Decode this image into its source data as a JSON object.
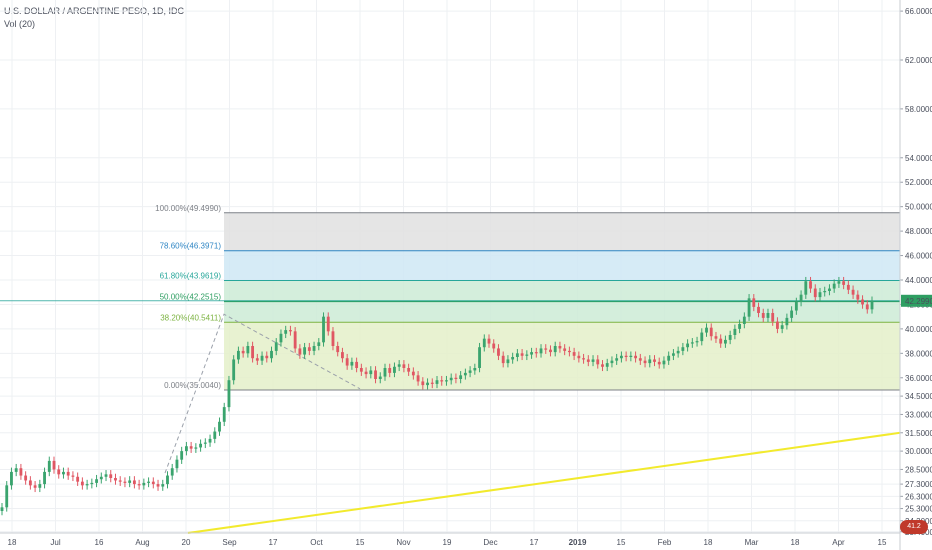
{
  "legend": {
    "symbol": "U.S. DOLLAR / ARGENTINE PESO, 1D, IDC",
    "volume": "Vol (20)"
  },
  "colors": {
    "up": "#3aa46e",
    "down": "#e05763",
    "trendline": "#f2ea2d",
    "price_tag": "#2e9e62",
    "grid": "#eef0f3"
  },
  "price_tag": "42.2990",
  "badge_text": "41.2",
  "chart_data": {
    "type": "candlestick",
    "ylim": [
      23.3,
      66.5
    ],
    "y_ticks": [
      "66.0000",
      "62.0000",
      "58.0000",
      "54.0000",
      "52.0000",
      "50.0000",
      "48.0000",
      "46.0000",
      "44.0000",
      "42.0000",
      "40.0000",
      "38.0000",
      "36.0000",
      "34.5000",
      "33.0000",
      "31.5000",
      "30.0000",
      "28.5000",
      "27.3000",
      "26.3000",
      "25.3000",
      "24.3000",
      "23.4000"
    ],
    "x_labels": [
      "18",
      "Jul",
      "16",
      "Aug",
      "20",
      "Sep",
      "17",
      "Oct",
      "15",
      "Nov",
      "19",
      "Dec",
      "17",
      "2019",
      "15",
      "Feb",
      "18",
      "Mar",
      "18",
      "Apr",
      "15"
    ],
    "bold_x_labels": [
      "2019"
    ],
    "fibonacci": [
      {
        "label": "100.00%(49.4990)",
        "price": 49.499,
        "color": "#7d8087"
      },
      {
        "label": "78.60%(46.3971)",
        "price": 46.3971,
        "color": "#2f86c4"
      },
      {
        "label": "61.80%(43.9619)",
        "price": 43.9619,
        "color": "#26a69a"
      },
      {
        "label": "50.00%(42.2515)",
        "price": 42.2515,
        "color": "#2e9e62"
      },
      {
        "label": "38.20%(40.5411)",
        "price": 40.5411,
        "color": "#7cb342"
      },
      {
        "label": "0.00%(35.0040)",
        "price": 35.004,
        "color": "#7d8087"
      }
    ],
    "closes": [
      25.4,
      27.2,
      28.3,
      28.6,
      28.0,
      27.6,
      27.2,
      27.0,
      27.3,
      28.3,
      29.2,
      28.5,
      28.1,
      28.3,
      28.0,
      27.9,
      27.5,
      27.2,
      27.3,
      27.4,
      27.7,
      27.9,
      28.1,
      27.8,
      27.6,
      27.5,
      27.4,
      27.6,
      27.3,
      27.2,
      27.4,
      27.5,
      27.3,
      27.1,
      27.3,
      28.0,
      28.6,
      29.3,
      30.0,
      30.4,
      30.2,
      30.3,
      30.6,
      30.7,
      31.0,
      31.6,
      32.4,
      33.6,
      35.8,
      37.5,
      38.2,
      38.0,
      38.6,
      37.6,
      37.4,
      37.8,
      37.6,
      38.2,
      38.9,
      39.6,
      39.9,
      39.8,
      38.4,
      37.9,
      38.5,
      38.2,
      38.6,
      38.9,
      41.0,
      39.8,
      38.6,
      38.1,
      37.6,
      37.0,
      37.3,
      36.8,
      36.5,
      36.3,
      36.6,
      35.9,
      36.1,
      36.8,
      36.4,
      36.9,
      37.1,
      36.8,
      36.5,
      36.2,
      35.7,
      35.4,
      35.6,
      35.5,
      35.8,
      35.7,
      35.8,
      36.0,
      35.9,
      36.2,
      36.4,
      36.6,
      36.8,
      38.5,
      39.2,
      38.8,
      38.4,
      37.8,
      37.2,
      37.5,
      37.7,
      38.0,
      37.8,
      37.9,
      38.1,
      38.0,
      38.4,
      38.3,
      38.1,
      38.6,
      38.4,
      38.2,
      38.1,
      37.8,
      37.6,
      37.5,
      37.3,
      37.5,
      37.1,
      36.9,
      37.2,
      37.4,
      37.6,
      37.8,
      37.7,
      37.8,
      37.6,
      37.4,
      37.2,
      37.5,
      37.3,
      37.1,
      37.4,
      37.8,
      38.0,
      38.2,
      38.5,
      38.8,
      38.9,
      39.0,
      39.7,
      40.1,
      39.4,
      39.2,
      38.8,
      39.1,
      39.5,
      40.0,
      40.4,
      41.0,
      42.5,
      41.8,
      41.3,
      40.9,
      41.3,
      40.6,
      40.0,
      40.3,
      40.9,
      41.5,
      42.2,
      42.8,
      43.9,
      43.3,
      42.6,
      43.0,
      43.1,
      43.3,
      43.7,
      43.9,
      43.6,
      43.2,
      42.8,
      42.4,
      42.0,
      41.6,
      42.3
    ]
  }
}
